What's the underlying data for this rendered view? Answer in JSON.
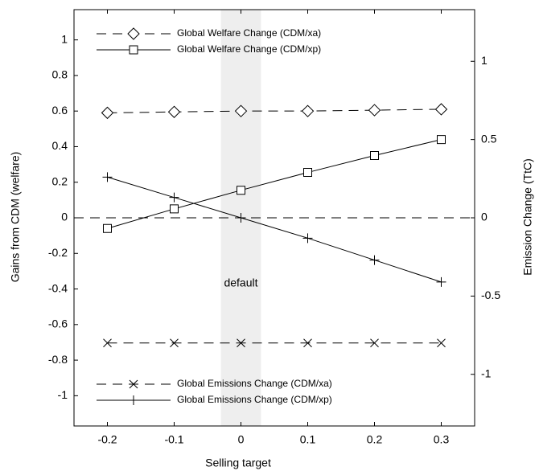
{
  "chart_data": {
    "type": "line",
    "x_label": "Selling target",
    "y_label": "Gains from CDM (welfare)",
    "y2_label": "Emission Change (TtC)",
    "x": [
      -0.2,
      -0.1,
      0,
      0.1,
      0.2,
      0.3
    ],
    "xlim": [
      -0.25,
      0.35
    ],
    "xticks": [
      -0.2,
      -0.1,
      0,
      0.1,
      0.2,
      0.3
    ],
    "ylim": [
      -1.17,
      1.17
    ],
    "yticks": [
      -1,
      -0.8,
      -0.6,
      -0.4,
      -0.2,
      0,
      0.2,
      0.4,
      0.6,
      0.8,
      1
    ],
    "y2lim": [
      -1.33,
      1.33
    ],
    "y2ticks": [
      -1,
      -0.5,
      0,
      0.5,
      1
    ],
    "zero_line": true,
    "highlight": {
      "xlim": [
        -0.03,
        0.03
      ],
      "label": "default",
      "color": "#eeeeee"
    },
    "series": [
      {
        "name": "Global Welfare Change (CDM/xa)",
        "color": "#000000",
        "marker": "diamond",
        "dashed": true,
        "legend": "upper left",
        "values": [
          0.59,
          0.595,
          0.6,
          0.6,
          0.605,
          0.61
        ]
      },
      {
        "name": "Global Welfare Change (CDM/xp)",
        "color": "#000000",
        "marker": "square",
        "dashed": false,
        "legend": "upper left",
        "values": [
          -0.06,
          0.05,
          0.155,
          0.255,
          0.35,
          0.44
        ]
      },
      {
        "name": "Global Emissions Change (CDM/xa)",
        "color": "#000000",
        "marker": "x",
        "dashed": true,
        "legend": "lower left",
        "axis": "y2",
        "values": [
          -0.8,
          -0.8,
          -0.8,
          -0.8,
          -0.8,
          -0.8
        ]
      },
      {
        "name": "Global Emissions Change (CDM/xp)",
        "color": "#000000",
        "marker": "plus",
        "dashed": false,
        "legend": "lower left",
        "axis": "y2",
        "values": [
          0.26,
          0.13,
          0,
          -0.13,
          -0.27,
          -0.41
        ]
      }
    ]
  }
}
